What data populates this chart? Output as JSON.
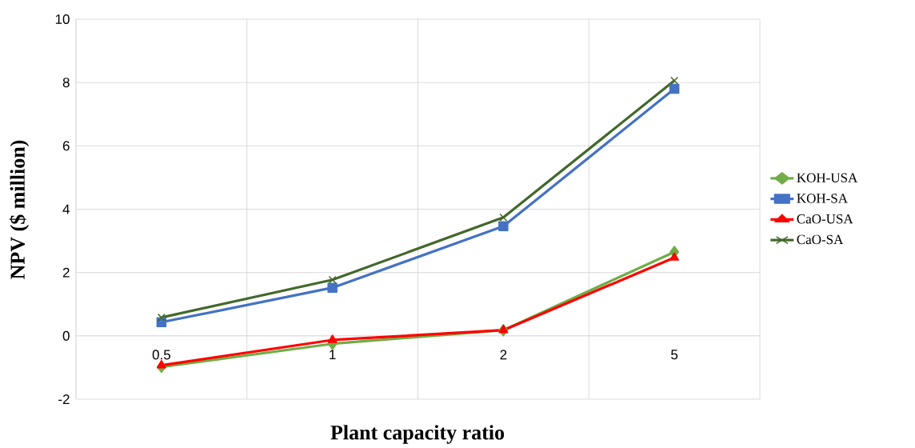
{
  "chart_data": {
    "type": "line",
    "xlabel": "Plant capacity ratio",
    "ylabel": "NPV ($ million)",
    "categories": [
      "0.5",
      "1",
      "2",
      "5"
    ],
    "series": [
      {
        "name": "KOH-USA",
        "color": "#70ad47",
        "marker": "diamond",
        "values": [
          -0.98,
          -0.25,
          0.18,
          2.65
        ]
      },
      {
        "name": "KOH-SA",
        "color": "#4472c4",
        "marker": "square",
        "values": [
          0.43,
          1.52,
          3.46,
          7.8
        ]
      },
      {
        "name": "CaO-USA",
        "color": "#ff0000",
        "marker": "triangle",
        "values": [
          -0.93,
          -0.13,
          0.18,
          2.47
        ]
      },
      {
        "name": "CaO-SA",
        "color": "#43682b",
        "marker": "cross",
        "values": [
          0.58,
          1.77,
          3.74,
          8.06
        ]
      }
    ],
    "ylim": [
      -2,
      10
    ],
    "yticks": [
      -2,
      0,
      2,
      4,
      6,
      8,
      10
    ],
    "grid": true,
    "legend": "right",
    "line_style": "solid"
  }
}
